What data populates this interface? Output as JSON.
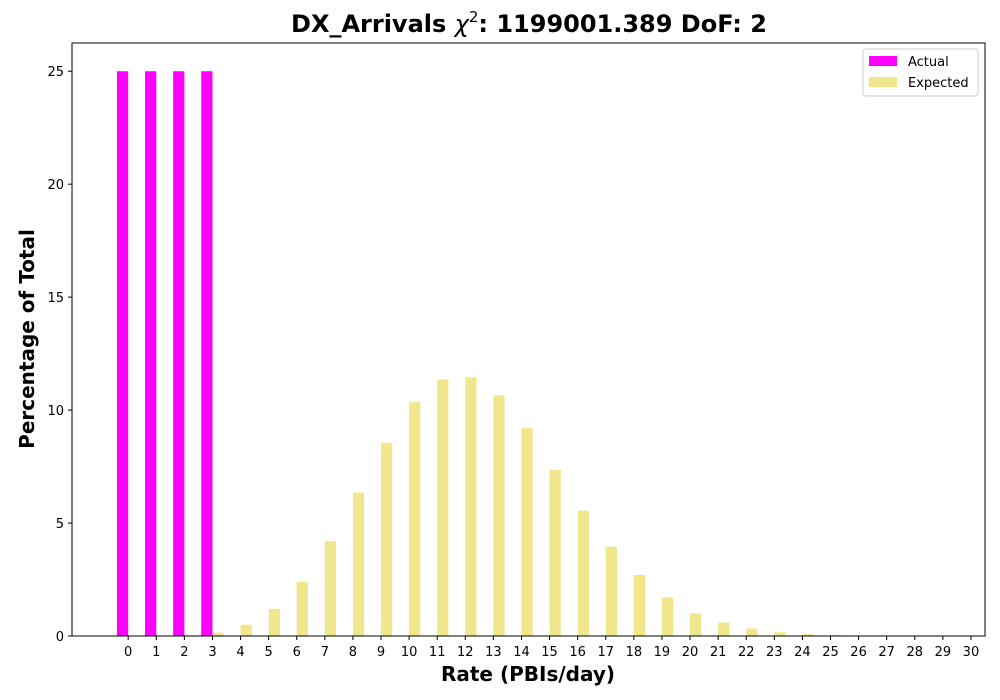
{
  "chart_data": {
    "type": "bar",
    "title_prefix": "DX_Arrivals ",
    "title_chi": "χ",
    "title_sup": "2",
    "title_suffix": ": 1199001.389 DoF: 2",
    "xlabel": "Rate (PBIs/day)",
    "ylabel": "Percentage of Total",
    "categories": [
      0,
      1,
      2,
      3,
      4,
      5,
      6,
      7,
      8,
      9,
      10,
      11,
      12,
      13,
      14,
      15,
      16,
      17,
      18,
      19,
      20,
      21,
      22,
      23,
      24,
      25,
      26,
      27,
      28,
      29,
      30
    ],
    "xlim": [
      -2,
      30.5
    ],
    "ylim": [
      0,
      26.25
    ],
    "yticks": [
      0,
      5,
      10,
      15,
      20,
      25
    ],
    "legend_position": "top-right",
    "series": [
      {
        "name": "Actual",
        "color": "#ff00ff",
        "values": [
          25,
          25,
          25,
          25,
          0,
          0,
          0,
          0,
          0,
          0,
          0,
          0,
          0,
          0,
          0,
          0,
          0,
          0,
          0,
          0,
          0,
          0,
          0,
          0,
          0,
          0,
          0,
          0,
          0,
          0,
          0
        ]
      },
      {
        "name": "Expected",
        "color": "#f0e68c",
        "values": [
          0.0,
          0.01,
          0.04,
          0.15,
          0.5,
          1.2,
          2.4,
          4.2,
          6.35,
          8.55,
          10.35,
          11.35,
          11.45,
          10.65,
          9.2,
          7.35,
          5.55,
          3.95,
          2.7,
          1.7,
          1.0,
          0.6,
          0.33,
          0.17,
          0.08,
          0.04,
          0.02,
          0.01,
          0.0,
          0.0,
          0.0
        ]
      }
    ]
  }
}
